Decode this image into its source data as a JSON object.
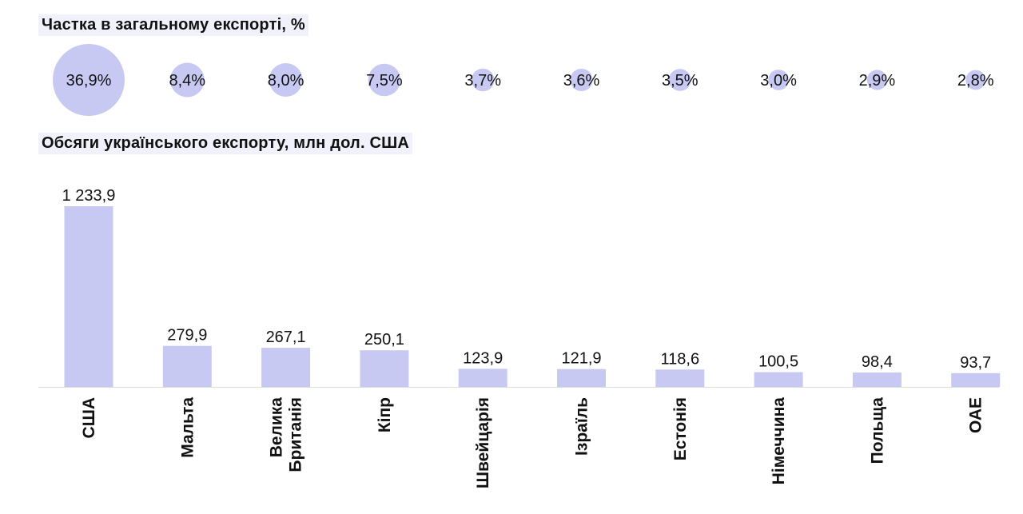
{
  "share_section": {
    "title": "Частка в загальному експорті, %"
  },
  "volume_section": {
    "title": "Обсяги українського експорту, млн дол. США"
  },
  "colors": {
    "accent": "#c8c9f3",
    "axis": "#dcdcdc",
    "text": "#111111",
    "heading_bg": "#f1f1fb"
  },
  "chart_data": [
    {
      "type": "bubble",
      "title": "Частка в загальному експорті, %",
      "categories": [
        "США",
        "Мальта",
        "Велика Британія",
        "Кіпр",
        "Швейцарія",
        "Ізраїль",
        "Естонія",
        "Німеччина",
        "Польща",
        "ОАЕ"
      ],
      "values": [
        36.9,
        8.4,
        8.0,
        7.5,
        3.7,
        3.6,
        3.5,
        3.0,
        2.9,
        2.8
      ],
      "labels": [
        "36,9%",
        "8,4%",
        "8,0%",
        "7,5%",
        "3,7%",
        "3,6%",
        "3,5%",
        "3,0%",
        "2,9%",
        "2,8%"
      ]
    },
    {
      "type": "bar",
      "title": "Обсяги українського експорту, млн дол. США",
      "categories": [
        "США",
        "Мальта",
        "Велика Британія",
        "Кіпр",
        "Швейцарія",
        "Ізраїль",
        "Естонія",
        "Німеччина",
        "Польща",
        "ОАЕ"
      ],
      "category_lines": [
        [
          "США"
        ],
        [
          "Мальта"
        ],
        [
          "Велика",
          "Британія"
        ],
        [
          "Кіпр"
        ],
        [
          "Швейцарія"
        ],
        [
          "Ізраїль"
        ],
        [
          "Естонія"
        ],
        [
          "Німеччина"
        ],
        [
          "Польща"
        ],
        [
          "ОАЕ"
        ]
      ],
      "values": [
        1233.9,
        279.9,
        267.1,
        250.1,
        123.9,
        121.9,
        118.6,
        100.5,
        98.4,
        93.7
      ],
      "labels": [
        "1 233,9",
        "279,9",
        "267,1",
        "250,1",
        "123,9",
        "121,9",
        "118,6",
        "100,5",
        "98,4",
        "93,7"
      ],
      "ylim": [
        0,
        1233.9
      ]
    }
  ]
}
